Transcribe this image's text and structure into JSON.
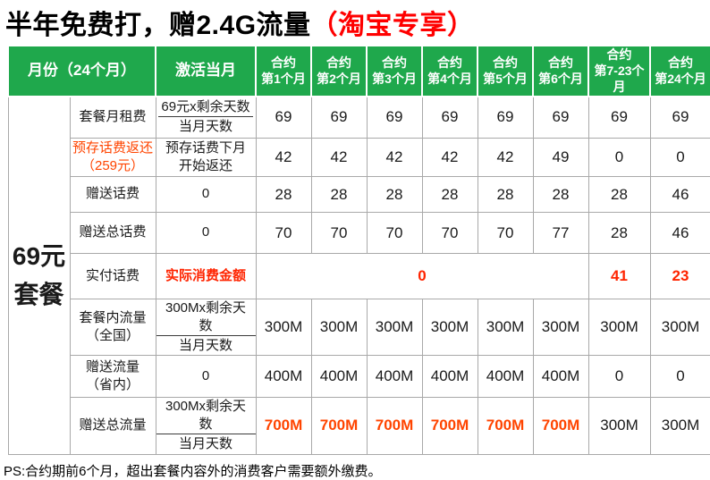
{
  "title": {
    "black": "半年免费打，赠2.4G流量",
    "red": "（淘宝专享）"
  },
  "colors": {
    "header_green": "#1fa84c",
    "title_red": "#ff0000",
    "orange_red": "#ff4400",
    "value_red": "#ff2400",
    "border_gray": "#a9a9a9"
  },
  "plan_label": {
    "lines": [
      "69元",
      "套餐"
    ]
  },
  "table": {
    "header": {
      "month": "月份（24个月）",
      "activation": "激活当月",
      "contracts": [
        {
          "top": "合约",
          "bottom": "第1个月"
        },
        {
          "top": "合约",
          "bottom": "第2个月"
        },
        {
          "top": "合约",
          "bottom": "第3个月"
        },
        {
          "top": "合约",
          "bottom": "第4个月"
        },
        {
          "top": "合约",
          "bottom": "第5个月"
        },
        {
          "top": "合约",
          "bottom": "第6个月"
        },
        {
          "top": "合约",
          "bottom": "第7-23个月"
        },
        {
          "top": "合约",
          "bottom": "第24个月"
        }
      ]
    },
    "rows": [
      {
        "name": "monthly-fee",
        "label_lines": [
          "套餐月租费"
        ],
        "activation": {
          "type": "fraction",
          "numerator": "69元x剩余天数",
          "denominator": "当月天数"
        },
        "cells": [
          {
            "t": "69"
          },
          {
            "t": "69"
          },
          {
            "t": "69"
          },
          {
            "t": "69"
          },
          {
            "t": "69"
          },
          {
            "t": "69"
          },
          {
            "t": "69"
          },
          {
            "t": "69"
          }
        ]
      },
      {
        "name": "prepaid-refund",
        "label_lines": [
          "预存话费返还",
          "（259元）"
        ],
        "label_color": "orange",
        "activation": {
          "type": "text",
          "lines": [
            "预存话费下月",
            "开始返还"
          ]
        },
        "cells": [
          {
            "t": "42"
          },
          {
            "t": "42"
          },
          {
            "t": "42"
          },
          {
            "t": "42"
          },
          {
            "t": "42"
          },
          {
            "t": "49"
          },
          {
            "t": "0"
          },
          {
            "t": "0"
          }
        ]
      },
      {
        "name": "gift-credit",
        "label_lines": [
          "赠送话费"
        ],
        "activation": {
          "type": "text",
          "lines": [
            "0"
          ]
        },
        "cells": [
          {
            "t": "28"
          },
          {
            "t": "28"
          },
          {
            "t": "28"
          },
          {
            "t": "28"
          },
          {
            "t": "28"
          },
          {
            "t": "28"
          },
          {
            "t": "28"
          },
          {
            "t": "46"
          }
        ]
      },
      {
        "name": "gift-total-credit",
        "label_lines": [
          "赠送总话费"
        ],
        "activation": {
          "type": "text",
          "lines": [
            "0"
          ]
        },
        "cells": [
          {
            "t": "70"
          },
          {
            "t": "70"
          },
          {
            "t": "70"
          },
          {
            "t": "70"
          },
          {
            "t": "70"
          },
          {
            "t": "77"
          },
          {
            "t": "28"
          },
          {
            "t": "46"
          }
        ]
      },
      {
        "name": "actual-payment",
        "label_lines": [
          "实付话费"
        ],
        "activation": {
          "type": "text",
          "lines": [
            "实际消费金额"
          ],
          "color": "red",
          "bold": true
        },
        "cells": [
          {
            "t": "0",
            "span": 6,
            "color": "red",
            "bold": true
          },
          {
            "t": "41",
            "color": "red",
            "bold": true
          },
          {
            "t": "23",
            "color": "red",
            "bold": true
          }
        ]
      },
      {
        "name": "plan-data-national",
        "label_lines": [
          "套餐内流量",
          "（全国）"
        ],
        "activation": {
          "type": "fraction",
          "numerator": "300Mx剩余天数",
          "denominator": "当月天数"
        },
        "cells": [
          {
            "t": "300M"
          },
          {
            "t": "300M"
          },
          {
            "t": "300M"
          },
          {
            "t": "300M"
          },
          {
            "t": "300M"
          },
          {
            "t": "300M"
          },
          {
            "t": "300M"
          },
          {
            "t": "300M"
          }
        ]
      },
      {
        "name": "gift-data-province",
        "label_lines": [
          "赠送流量",
          "（省内）"
        ],
        "activation": {
          "type": "text",
          "lines": [
            "0"
          ]
        },
        "cells": [
          {
            "t": "400M"
          },
          {
            "t": "400M"
          },
          {
            "t": "400M"
          },
          {
            "t": "400M"
          },
          {
            "t": "400M"
          },
          {
            "t": "400M"
          },
          {
            "t": "0"
          },
          {
            "t": "0"
          }
        ]
      },
      {
        "name": "gift-total-data",
        "label_lines": [
          "赠送总流量"
        ],
        "activation": {
          "type": "fraction",
          "numerator": "300Mx剩余天数",
          "denominator": "当月天数"
        },
        "cells": [
          {
            "t": "700M",
            "color": "orange",
            "bold": true
          },
          {
            "t": "700M",
            "color": "orange",
            "bold": true
          },
          {
            "t": "700M",
            "color": "orange",
            "bold": true
          },
          {
            "t": "700M",
            "color": "orange",
            "bold": true
          },
          {
            "t": "700M",
            "color": "orange",
            "bold": true
          },
          {
            "t": "700M",
            "color": "orange",
            "bold": true
          },
          {
            "t": "300M"
          },
          {
            "t": "300M"
          }
        ]
      }
    ]
  },
  "footnote": "PS:合约期前6个月，超出套餐内容外的消费客户需要额外缴费。"
}
